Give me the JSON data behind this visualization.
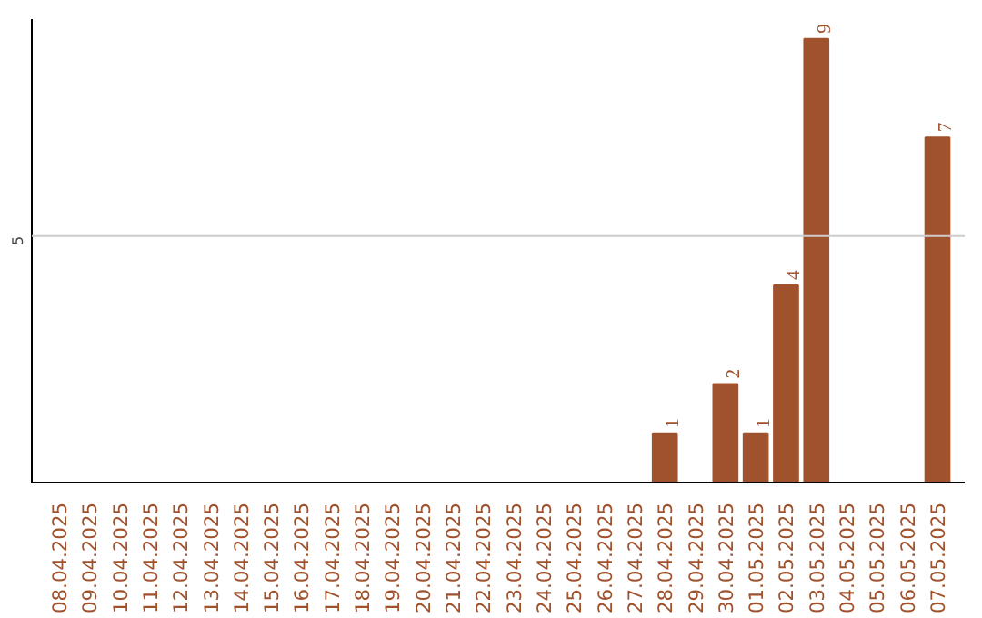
{
  "chart_data": {
    "type": "bar",
    "categories": [
      "08.04.2025",
      "09.04.2025",
      "10.04.2025",
      "11.04.2025",
      "12.04.2025",
      "13.04.2025",
      "14.04.2025",
      "15.04.2025",
      "16.04.2025",
      "17.04.2025",
      "18.04.2025",
      "19.04.2025",
      "20.04.2025",
      "21.04.2025",
      "22.04.2025",
      "23.04.2025",
      "24.04.2025",
      "25.04.2025",
      "26.04.2025",
      "27.04.2025",
      "28.04.2025",
      "29.04.2025",
      "30.04.2025",
      "01.05.2025",
      "02.05.2025",
      "03.05.2025",
      "04.05.2025",
      "05.05.2025",
      "06.05.2025",
      "07.05.2025"
    ],
    "values": [
      null,
      null,
      null,
      null,
      null,
      null,
      null,
      null,
      null,
      null,
      null,
      null,
      null,
      null,
      null,
      null,
      null,
      null,
      null,
      null,
      1,
      null,
      2,
      1,
      4,
      9,
      null,
      null,
      null,
      7
    ],
    "data_labels": true,
    "color": "#a0522d",
    "ylim": [
      0,
      9.4
    ],
    "ref_lines": [
      {
        "axis": "y",
        "value": 5,
        "label": "5",
        "color": "#cccccc"
      }
    ]
  }
}
